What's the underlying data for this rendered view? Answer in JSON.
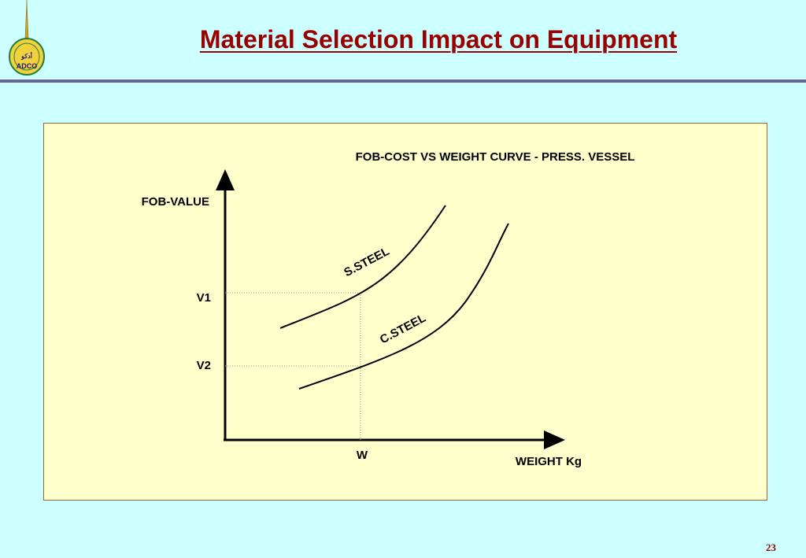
{
  "logo": {
    "text": "ADCO",
    "arabic_text": "أدكو"
  },
  "header": {
    "title": "Material Selection Impact on Equipment"
  },
  "diagram": {
    "title": "FOB-COST VS WEIGHT CURVE - PRESS. VESSEL",
    "y_axis_label": "FOB-VALUE",
    "x_axis_label": "WEIGHT Kg",
    "y_markers": [
      "V1",
      "V2"
    ],
    "x_marker": "W",
    "curves": [
      "S.STEEL",
      "C.STEEL"
    ]
  },
  "footer": {
    "page_number": "23"
  },
  "colors": {
    "background": "#ccffff",
    "panel": "#ffffcc",
    "title": "#990000",
    "rule": "#666699"
  }
}
